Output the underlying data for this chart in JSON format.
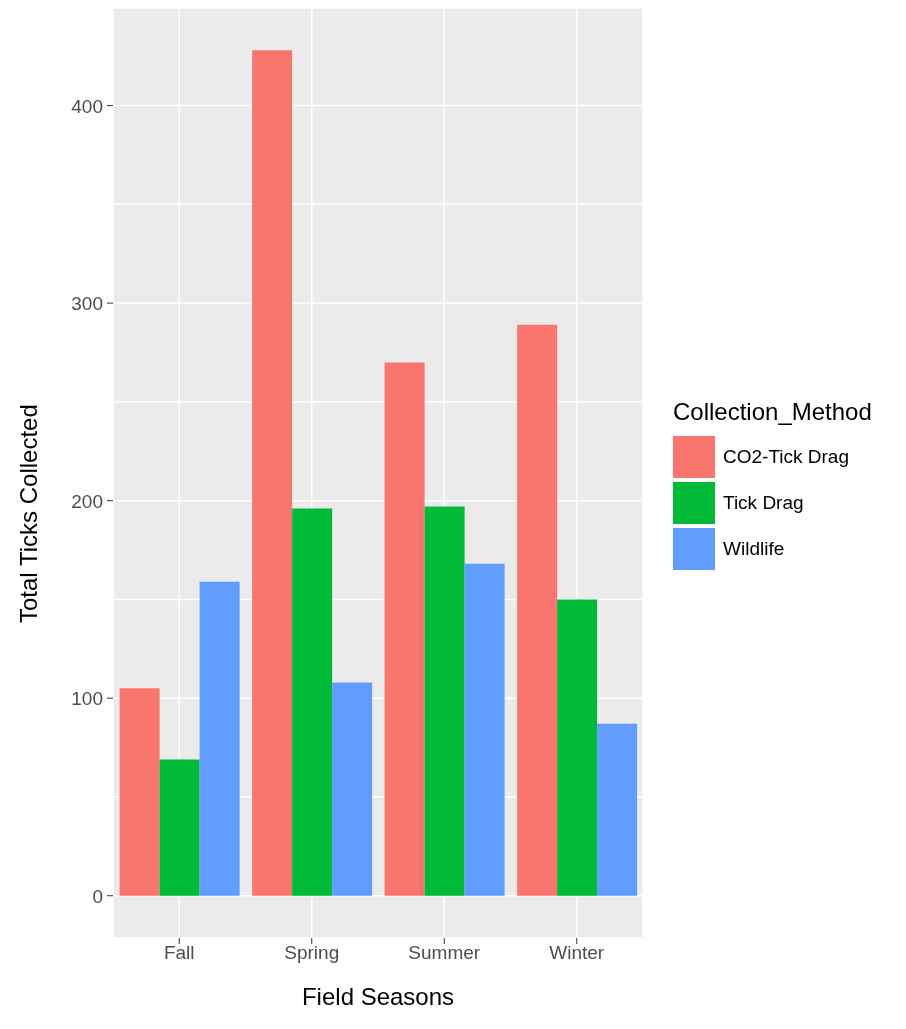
{
  "chart_data": {
    "type": "bar",
    "xlabel": "Field Seasons",
    "ylabel": "Total Ticks Collected",
    "legend_title": "Collection_Method",
    "categories": [
      "Fall",
      "Spring",
      "Summer",
      "Winter"
    ],
    "series": [
      {
        "name": "CO2-Tick Drag",
        "color": "#f8766d",
        "values": [
          105,
          428,
          270,
          289
        ]
      },
      {
        "name": "Tick Drag",
        "color": "#00ba38",
        "values": [
          69,
          196,
          197,
          150
        ]
      },
      {
        "name": "Wildlife",
        "color": "#619cff",
        "values": [
          159,
          108,
          168,
          87
        ]
      }
    ],
    "ylim": [
      -21.4,
      449.4
    ],
    "yticks": [
      0,
      {
        "value": 50,
        "label": null
      },
      100,
      {
        "value": 150,
        "label": null
      },
      200,
      {
        "value": 250,
        "label": null
      },
      300,
      {
        "value": 350,
        "label": null
      },
      400
    ],
    "grid": true,
    "legend": "right"
  }
}
